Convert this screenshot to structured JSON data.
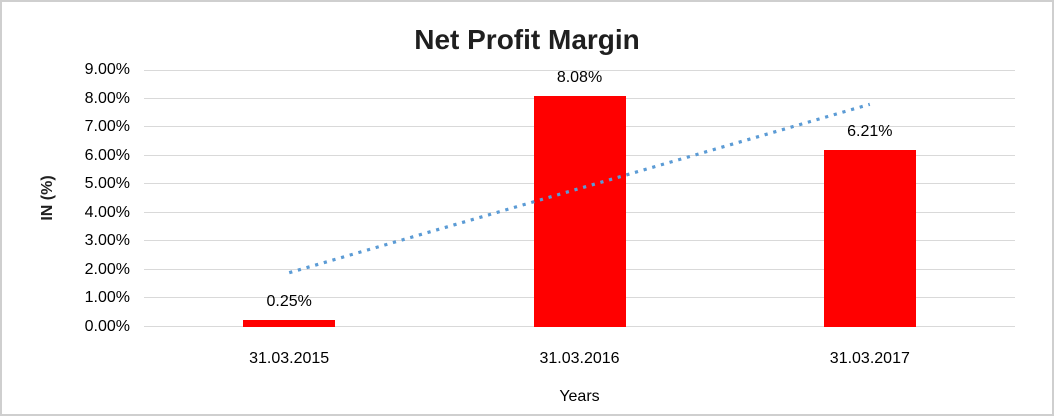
{
  "chart_data": {
    "type": "bar",
    "title": "Net Profit Margin",
    "categories": [
      "31.03.2015",
      "31.03.2016",
      "31.03.2017"
    ],
    "values": [
      0.25,
      8.08,
      6.21
    ],
    "data_labels": [
      "0.25%",
      "8.08%",
      "6.21%"
    ],
    "xlabel": "Years",
    "ylabel": "IN (%)",
    "ylim": [
      0,
      9
    ],
    "ytick_step": 1,
    "ytick_labels": [
      "0.00%",
      "1.00%",
      "2.00%",
      "3.00%",
      "4.00%",
      "5.00%",
      "6.00%",
      "7.00%",
      "8.00%",
      "9.00%"
    ],
    "grid": true,
    "legend": "none",
    "bar_color": "#ff0000",
    "gridline_color": "#d9d9d9",
    "trendline": {
      "type": "linear",
      "style": "dotted",
      "color": "#5b9bd5",
      "start_value": 1.9,
      "end_value": 7.8
    }
  }
}
